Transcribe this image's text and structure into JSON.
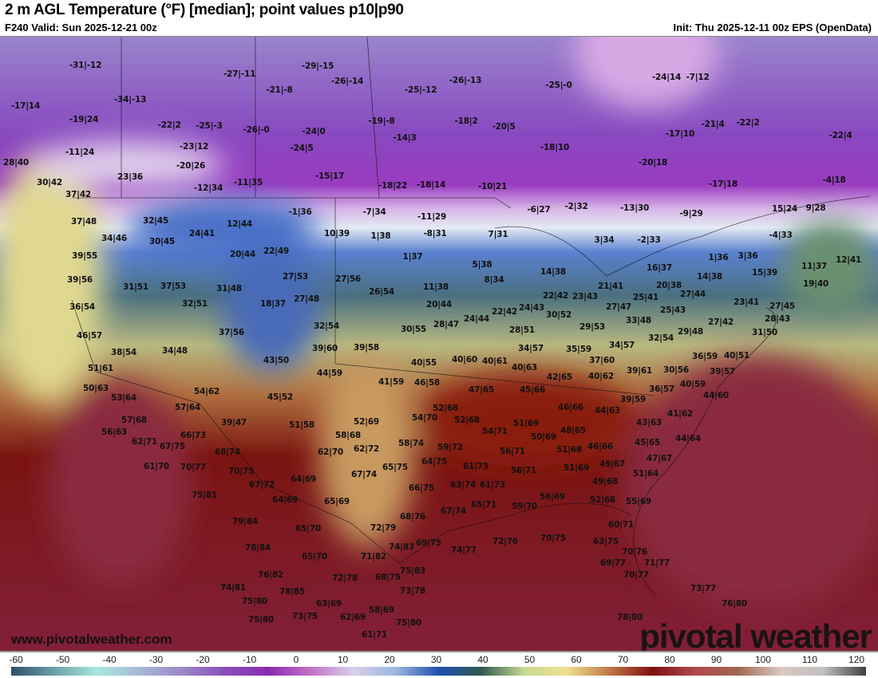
{
  "header": {
    "title": "2 m AGL Temperature (°F) [median]; point values p10|p90",
    "valid": "F240 Valid: Sun 2025-12-21 00z",
    "init": "Init: Thu 2025-12-11 00z EPS (OpenData)"
  },
  "map": {
    "website": "www.pivotalweather.com",
    "logo": "pivotal weather",
    "points": [
      "-31|-12",
      "-27|-11",
      "-29|-15",
      "-26|-14",
      "-21|-8",
      "-25|-12",
      "-26|-13",
      "-25|-0",
      "-34|-13",
      "-17|14",
      "-19|24",
      "-22|2",
      "-25|-3",
      "-26|-0",
      "-24|0",
      "-19|-8",
      "-18|2",
      "-20|5",
      "-14|3",
      "-23|12",
      "-24|5",
      "-18|10",
      "-11|24",
      "28|40",
      "-20|26",
      "-15|17",
      "-12|34",
      "-11|35",
      "23|36",
      "30|42",
      "-18|22",
      "-18|14",
      "-10|21",
      "-20|18",
      "-17|10",
      "-21|4",
      "-22|2",
      "-22|4",
      "-24|14",
      "-7|12",
      "-17|18",
      "-4|18",
      "37|42",
      "-6|27",
      "-2|32",
      "-13|30",
      "-9|29",
      "15|24",
      "9|28",
      "-1|36",
      "-7|34",
      "-11|29",
      "-8|31",
      "10|39",
      "1|38",
      "7|31",
      "3|34",
      "-2|33",
      "-4|33",
      "37|48",
      "32|45",
      "12|44",
      "34|46",
      "30|45",
      "24|41",
      "20|44",
      "22|49",
      "39|55",
      "1|37",
      "5|38",
      "14|38",
      "16|37",
      "1|36",
      "3|36",
      "11|37",
      "12|41",
      "39|56",
      "31|51",
      "37|53",
      "27|53",
      "27|56",
      "31|48",
      "8|34",
      "11|38",
      "22|42",
      "23|43",
      "21|41",
      "20|38",
      "14|38",
      "15|39",
      "19|40",
      "26|54",
      "18|37",
      "27|48",
      "32|51",
      "36|54",
      "25|41",
      "27|44",
      "27|47",
      "25|43",
      "23|41",
      "27|45",
      "20|44",
      "24|43",
      "22|42",
      "24|44",
      "28|47",
      "30|52",
      "28|51",
      "29|53",
      "33|48",
      "28|43",
      "27|42",
      "31|50",
      "46|57",
      "37|56",
      "32|54",
      "30|55",
      "32|54",
      "29|48",
      "38|54",
      "34|48",
      "43|50",
      "39|60",
      "39|58",
      "34|57",
      "35|59",
      "34|57",
      "36|59",
      "40|51",
      "40|55",
      "40|60",
      "40|61",
      "40|63",
      "37|60",
      "51|61",
      "44|59",
      "39|61",
      "30|56",
      "39|57",
      "41|59",
      "46|58",
      "42|65",
      "40|62",
      "50|63",
      "47|65",
      "45|66",
      "36|57",
      "40|59",
      "44|60",
      "53|64",
      "54|62",
      "45|52",
      "52|68",
      "39|59",
      "46|66",
      "44|63",
      "57|64",
      "41|62",
      "57|68",
      "39|47",
      "51|58",
      "52|69",
      "54|70",
      "52|68",
      "51|69",
      "43|63",
      "56|63",
      "66|73",
      "54|71",
      "48|65",
      "58|68",
      "50|69",
      "44|64",
      "62|71",
      "67|75",
      "58|74",
      "59|72",
      "51|68",
      "46|66",
      "45|65",
      "68|74",
      "62|70",
      "62|72",
      "56|71",
      "47|67",
      "61|70",
      "70|77",
      "70|75",
      "65|75",
      "64|75",
      "61|73",
      "56|71",
      "51|69",
      "49|67",
      "67|74",
      "51|64",
      "64|69",
      "67|72",
      "66|75",
      "63|74",
      "61|73",
      "49|68",
      "75|81",
      "64|69",
      "65|69",
      "68|76",
      "67|74",
      "65|71",
      "59|70",
      "56|69",
      "52|68",
      "55|69",
      "79|84",
      "65|70",
      "72|79",
      "60|71",
      "69|75",
      "74|83",
      "74|77",
      "72|76",
      "70|75",
      "63|75",
      "78|84",
      "65|70",
      "71|82",
      "70|76",
      "69|77",
      "71|77",
      "76|82",
      "72|78",
      "68|75",
      "75|83",
      "70|77",
      "74|81",
      "78|85",
      "73|78",
      "73|77",
      "75|80",
      "63|69",
      "58|69",
      "76|80",
      "75|80",
      "73|75",
      "62|69",
      "75|80",
      "78|80",
      "61|71"
    ]
  },
  "colorbar": {
    "ticks": [
      "-60",
      "-50",
      "-40",
      "-30",
      "-20",
      "-10",
      "0",
      "10",
      "20",
      "30",
      "40",
      "50",
      "60",
      "70",
      "80",
      "90",
      "100",
      "110",
      "120"
    ],
    "colors": [
      "#2f4f6a",
      "#6aa0a8",
      "#a8e8dc",
      "#a8b8d8",
      "#9a88c8",
      "#8a50b8",
      "#8a28b0",
      "#c070c8",
      "#d8d0e8",
      "#9ab8e0",
      "#2050b0",
      "#305a50",
      "#c8d890",
      "#f0e090",
      "#c07848",
      "#801010",
      "#b04850",
      "#a06850",
      "#d8c8c0",
      "#c0c0c0",
      "#404040"
    ]
  }
}
